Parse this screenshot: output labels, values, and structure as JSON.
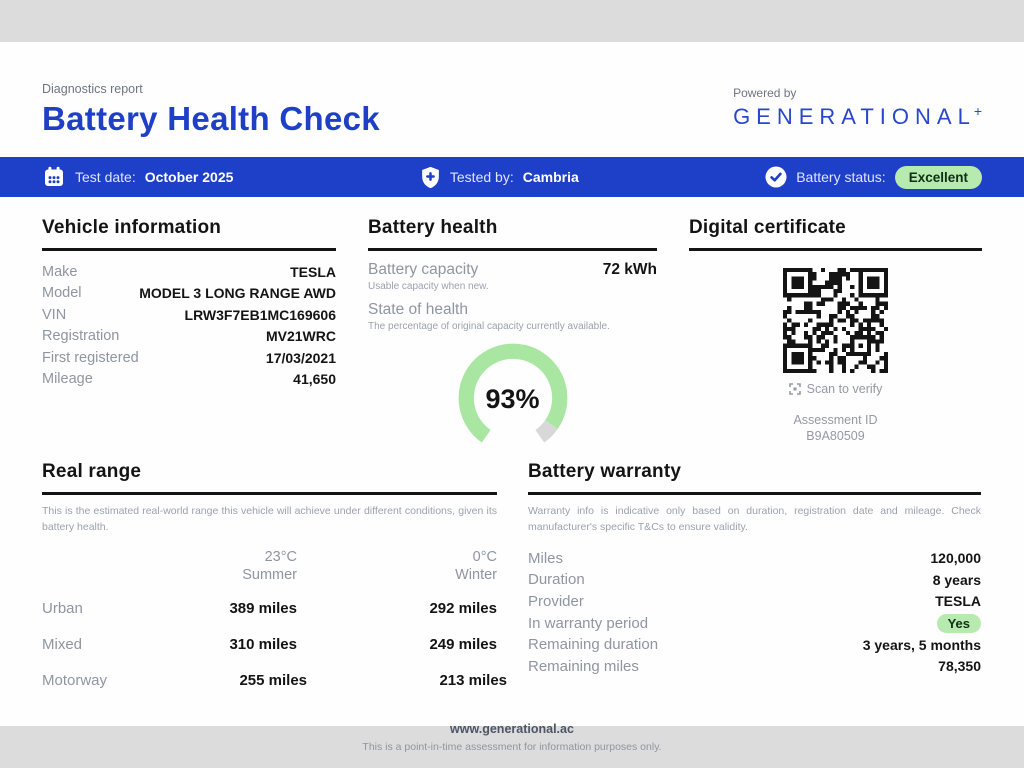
{
  "header": {
    "eyebrow": "Diagnostics report",
    "title": "Battery Health Check",
    "powered_by": "Powered by",
    "brand": "GENERATIONAL",
    "brand_plus": "+"
  },
  "info_bar": {
    "test_date_label": "Test date:",
    "test_date_value": "October 2025",
    "tested_by_label": "Tested by:",
    "tested_by_value": "Cambria",
    "battery_status_label": "Battery status:",
    "battery_status_value": "Excellent"
  },
  "vehicle_info": {
    "title": "Vehicle information",
    "rows": [
      {
        "label": "Make",
        "value": "TESLA"
      },
      {
        "label": "Model",
        "value": "MODEL 3 LONG RANGE AWD"
      },
      {
        "label": "VIN",
        "value": "LRW3F7EB1MC169606"
      },
      {
        "label": "Registration",
        "value": "MV21WRC"
      },
      {
        "label": "First registered",
        "value": "17/03/2021"
      },
      {
        "label": "Mileage",
        "value": "41,650"
      }
    ]
  },
  "battery_health": {
    "title": "Battery health",
    "capacity_label": "Battery capacity",
    "capacity_value": "72 kWh",
    "capacity_note": "Usable capacity when new.",
    "soh_label": "State of health",
    "soh_note": "The percentage of original capacity currently available.",
    "soh_value": "93%",
    "soh_percent": 93
  },
  "certificate": {
    "title": "Digital certificate",
    "scan_label": "Scan to verify",
    "assessment_id_label": "Assessment ID",
    "assessment_id_value": "B9A80509"
  },
  "real_range": {
    "title": "Real range",
    "description": "This is the estimated real-world range this vehicle will achieve under different conditions, given its battery health.",
    "columns": [
      {
        "temp": "23°C",
        "season": "Summer"
      },
      {
        "temp": "0°C",
        "season": "Winter"
      }
    ],
    "rows": [
      {
        "label": "Urban",
        "summer": "389 miles",
        "winter": "292 miles"
      },
      {
        "label": "Mixed",
        "summer": "310 miles",
        "winter": "249 miles"
      },
      {
        "label": "Motorway",
        "summer": "255 miles",
        "winter": "213 miles"
      }
    ]
  },
  "warranty": {
    "title": "Battery warranty",
    "description": "Warranty info is indicative only based on duration, registration date and mileage. Check manufacturer's specific T&Cs to ensure validity.",
    "rows": [
      {
        "label": "Miles",
        "value": "120,000"
      },
      {
        "label": "Duration",
        "value": "8 years"
      },
      {
        "label": "Provider",
        "value": "TESLA"
      },
      {
        "label": "In warranty period",
        "value": "Yes"
      },
      {
        "label": "Remaining duration",
        "value": "3 years, 5 months"
      },
      {
        "label": "Remaining miles",
        "value": "78,350"
      }
    ]
  },
  "footer": {
    "url": "www.generational.ac",
    "disclaimer": "This is a point-in-time assessment for information purposes only."
  },
  "colors": {
    "accent_blue": "#1e40c8",
    "badge_green_bg": "#b7eaae",
    "gauge_green": "#a9e6a2",
    "gauge_gray": "#d8d8d8"
  }
}
